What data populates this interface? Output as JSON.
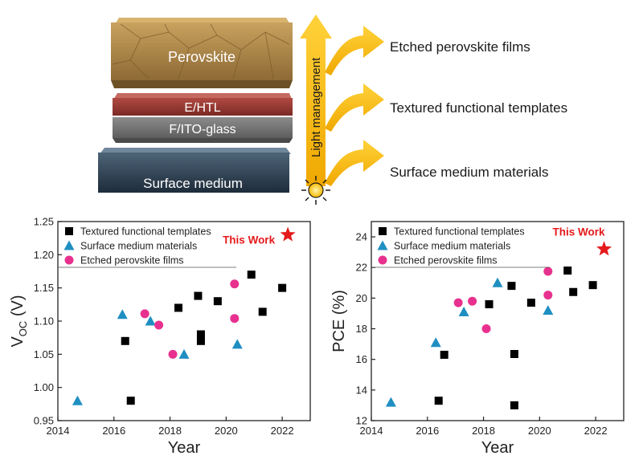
{
  "diagram": {
    "layers": {
      "perovskite": "Perovskite",
      "ehtl": "E/HTL",
      "fito": "F/ITO-glass",
      "surface": "Surface medium"
    },
    "light_management": "Light management",
    "outputs": [
      "Etched perovskite films",
      "Textured functional templates",
      "Surface medium materials"
    ],
    "colors": {
      "arrow": "#f5b800",
      "star": "#e41a1c",
      "square": "#000000",
      "triangle": "#1f8fc2",
      "circle": "#e8318f"
    }
  },
  "chart_data": [
    {
      "type": "scatter",
      "title": "",
      "xlabel": "Year",
      "ylabel_main": "V",
      "ylabel_sub": "OC",
      "ylabel_unit": " (V)",
      "xlim": [
        2014,
        2023
      ],
      "ylim": [
        0.95,
        1.25
      ],
      "xticks": [
        2014,
        2016,
        2018,
        2020,
        2022
      ],
      "yticks": [
        0.95,
        1.0,
        1.05,
        1.1,
        1.15,
        1.2,
        1.25
      ],
      "ytick_labels": [
        "0.95",
        "1.00",
        "1.05",
        "1.10",
        "1.15",
        "1.20",
        "1.25"
      ],
      "legend": "top-left",
      "series": [
        {
          "name": "Textured functional templates",
          "marker": "square",
          "color": "#000000",
          "points": [
            [
              2016.4,
              1.07
            ],
            [
              2016.6,
              0.98
            ],
            [
              2018.3,
              1.12
            ],
            [
              2019.0,
              1.138
            ],
            [
              2019.1,
              1.08
            ],
            [
              2019.1,
              1.07
            ],
            [
              2019.7,
              1.13
            ],
            [
              2020.9,
              1.17
            ],
            [
              2021.3,
              1.114
            ],
            [
              2022.0,
              1.15
            ]
          ]
        },
        {
          "name": "Surface medium materials",
          "marker": "triangle",
          "color": "#1f8fc2",
          "points": [
            [
              2014.7,
              0.98
            ],
            [
              2016.3,
              1.11
            ],
            [
              2017.3,
              1.1
            ],
            [
              2018.5,
              1.05
            ],
            [
              2020.4,
              1.065
            ]
          ]
        },
        {
          "name": "Etched perovskite films",
          "marker": "circle",
          "color": "#e8318f",
          "points": [
            [
              2017.1,
              1.111
            ],
            [
              2017.6,
              1.094
            ],
            [
              2018.1,
              1.05
            ],
            [
              2020.3,
              1.156
            ],
            [
              2020.3,
              1.104
            ]
          ]
        }
      ],
      "this_work": {
        "label": "This Work",
        "point": [
          2022.2,
          1.23
        ]
      }
    },
    {
      "type": "scatter",
      "title": "",
      "xlabel": "Year",
      "ylabel_main": "PCE (%)",
      "xlim": [
        2014,
        2023
      ],
      "ylim": [
        12,
        25
      ],
      "xticks": [
        2014,
        2016,
        2018,
        2020,
        2022
      ],
      "yticks": [
        12,
        14,
        16,
        18,
        20,
        22,
        24
      ],
      "ytick_labels": [
        "12",
        "14",
        "16",
        "18",
        "20",
        "22",
        "24"
      ],
      "legend": "top-left",
      "series": [
        {
          "name": "Textured functional templates",
          "marker": "square",
          "color": "#000000",
          "points": [
            [
              2016.4,
              13.3
            ],
            [
              2016.6,
              16.3
            ],
            [
              2018.2,
              19.6
            ],
            [
              2019.0,
              20.8
            ],
            [
              2019.1,
              16.35
            ],
            [
              2019.1,
              13.0
            ],
            [
              2019.7,
              19.7
            ],
            [
              2021.0,
              21.8
            ],
            [
              2021.2,
              20.4
            ],
            [
              2021.9,
              20.85
            ]
          ]
        },
        {
          "name": "Surface medium materials",
          "marker": "triangle",
          "color": "#1f8fc2",
          "points": [
            [
              2014.7,
              13.2
            ],
            [
              2016.3,
              17.1
            ],
            [
              2017.3,
              19.1
            ],
            [
              2018.5,
              21.0
            ],
            [
              2020.3,
              19.2
            ]
          ]
        },
        {
          "name": "Etched perovskite films",
          "marker": "circle",
          "color": "#e8318f",
          "points": [
            [
              2017.1,
              19.7
            ],
            [
              2017.6,
              19.8
            ],
            [
              2018.1,
              18.0
            ],
            [
              2020.3,
              21.75
            ],
            [
              2020.3,
              20.2
            ]
          ]
        }
      ],
      "this_work": {
        "label": "This Work",
        "point": [
          2022.3,
          23.2
        ]
      }
    }
  ]
}
